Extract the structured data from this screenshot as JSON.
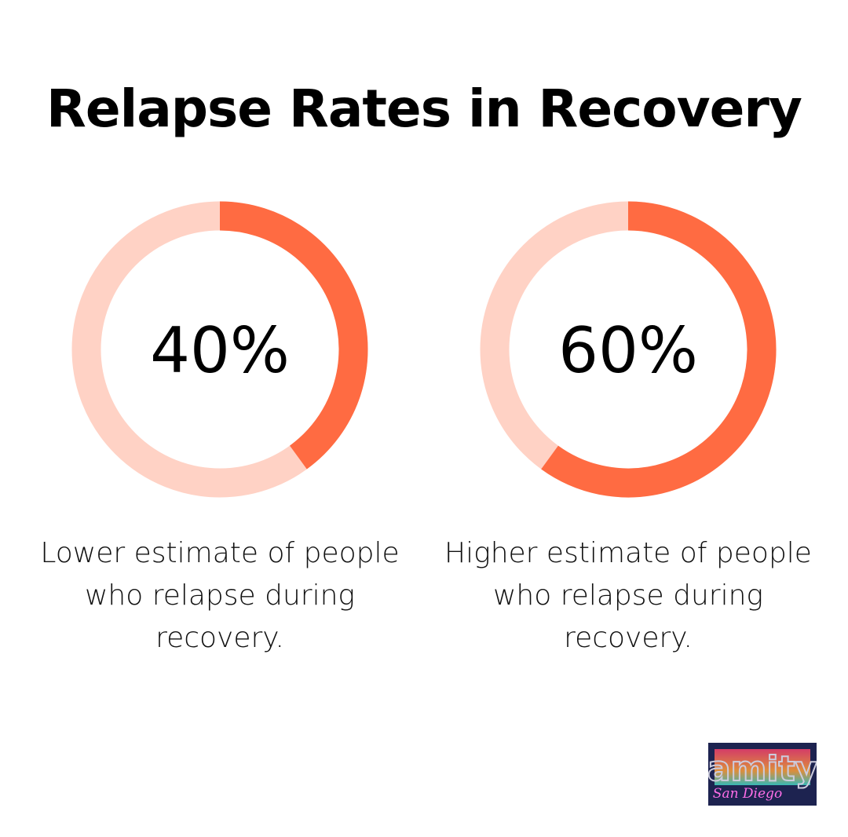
{
  "chart_data": {
    "type": "pie",
    "title": "Relapse Rates in Recovery",
    "charts": [
      {
        "value": 40,
        "label": "40%",
        "description": "Lower estimate of people who relapse during recovery."
      },
      {
        "value": 60,
        "label": "60%",
        "description": "Higher estimate of people who relapse during recovery."
      }
    ],
    "colors": {
      "filled": "#ff6b42",
      "track": "#ffd2c5"
    }
  },
  "logo": {
    "text": "amity San Diego"
  }
}
